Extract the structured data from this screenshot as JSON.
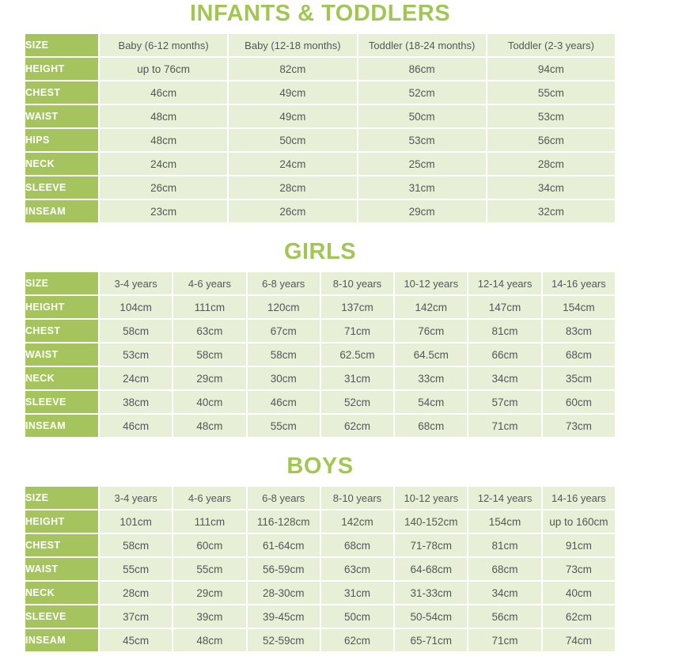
{
  "colors": {
    "title_green": "#a2c653",
    "header_cell_green": "#a6c45e",
    "data_cell_green": "#e7f0d6",
    "data_text_gray": "#55565a",
    "header_text_white": "#ffffff"
  },
  "tables": [
    {
      "title": "INFANTS & TODDLERS",
      "corner_label": "SIZE",
      "size_headers": [
        "Baby (6-12 months)",
        "Baby (12-18 months)",
        "Toddler (18-24 months)",
        "Toddler (2-3 years)"
      ],
      "rows": [
        {
          "label": "HEIGHT",
          "values": [
            "up to 76cm",
            "82cm",
            "86cm",
            "94cm"
          ]
        },
        {
          "label": "CHEST",
          "values": [
            "46cm",
            "49cm",
            "52cm",
            "55cm"
          ]
        },
        {
          "label": "WAIST",
          "values": [
            "48cm",
            "49cm",
            "50cm",
            "53cm"
          ]
        },
        {
          "label": "HIPS",
          "values": [
            "48cm",
            "50cm",
            "53cm",
            "56cm"
          ]
        },
        {
          "label": "NECK",
          "values": [
            "24cm",
            "24cm",
            "25cm",
            "28cm"
          ]
        },
        {
          "label": "SLEEVE",
          "values": [
            "26cm",
            "28cm",
            "31cm",
            "34cm"
          ]
        },
        {
          "label": "INSEAM",
          "values": [
            "23cm",
            "26cm",
            "29cm",
            "32cm"
          ]
        }
      ]
    },
    {
      "title": "GIRLS",
      "corner_label": "SIZE",
      "size_headers": [
        "3-4 years",
        "4-6 years",
        "6-8 years",
        "8-10 years",
        "10-12 years",
        "12-14 years",
        "14-16 years"
      ],
      "rows": [
        {
          "label": "HEIGHT",
          "values": [
            "104cm",
            "111cm",
            "120cm",
            "137cm",
            "142cm",
            "147cm",
            "154cm"
          ]
        },
        {
          "label": "CHEST",
          "values": [
            "58cm",
            "63cm",
            "67cm",
            "71cm",
            "76cm",
            "81cm",
            "83cm"
          ]
        },
        {
          "label": "WAIST",
          "values": [
            "53cm",
            "58cm",
            "58cm",
            "62.5cm",
            "64.5cm",
            "66cm",
            "68cm"
          ]
        },
        {
          "label": "NECK",
          "values": [
            "24cm",
            "29cm",
            "30cm",
            "31cm",
            "33cm",
            "34cm",
            "35cm"
          ]
        },
        {
          "label": "SLEEVE",
          "values": [
            "38cm",
            "40cm",
            "46cm",
            "52cm",
            "54cm",
            "57cm",
            "60cm"
          ]
        },
        {
          "label": "INSEAM",
          "values": [
            "46cm",
            "48cm",
            "55cm",
            "62cm",
            "68cm",
            "71cm",
            "73cm"
          ]
        }
      ]
    },
    {
      "title": "BOYS",
      "corner_label": "SIZE",
      "size_headers": [
        "3-4 years",
        "4-6 years",
        "6-8 years",
        "8-10 years",
        "10-12 years",
        "12-14 years",
        "14-16 years"
      ],
      "rows": [
        {
          "label": "HEIGHT",
          "values": [
            "101cm",
            "111cm",
            "116-128cm",
            "142cm",
            "140-152cm",
            "154cm",
            "up to 160cm"
          ]
        },
        {
          "label": "CHEST",
          "values": [
            "58cm",
            "60cm",
            "61-64cm",
            "68cm",
            "71-78cm",
            "81cm",
            "91cm"
          ]
        },
        {
          "label": "WAIST",
          "values": [
            "55cm",
            "55cm",
            "56-59cm",
            "63cm",
            "64-68cm",
            "68cm",
            "73cm"
          ]
        },
        {
          "label": "NECK",
          "values": [
            "28cm",
            "29cm",
            "28-30cm",
            "31cm",
            "31-33cm",
            "34cm",
            "40cm"
          ]
        },
        {
          "label": "SLEEVE",
          "values": [
            "37cm",
            "39cm",
            "39-45cm",
            "50cm",
            "50-54cm",
            "56cm",
            "62cm"
          ]
        },
        {
          "label": "INSEAM",
          "values": [
            "45cm",
            "48cm",
            "52-59cm",
            "62cm",
            "65-71cm",
            "71cm",
            "74cm"
          ]
        }
      ]
    }
  ]
}
